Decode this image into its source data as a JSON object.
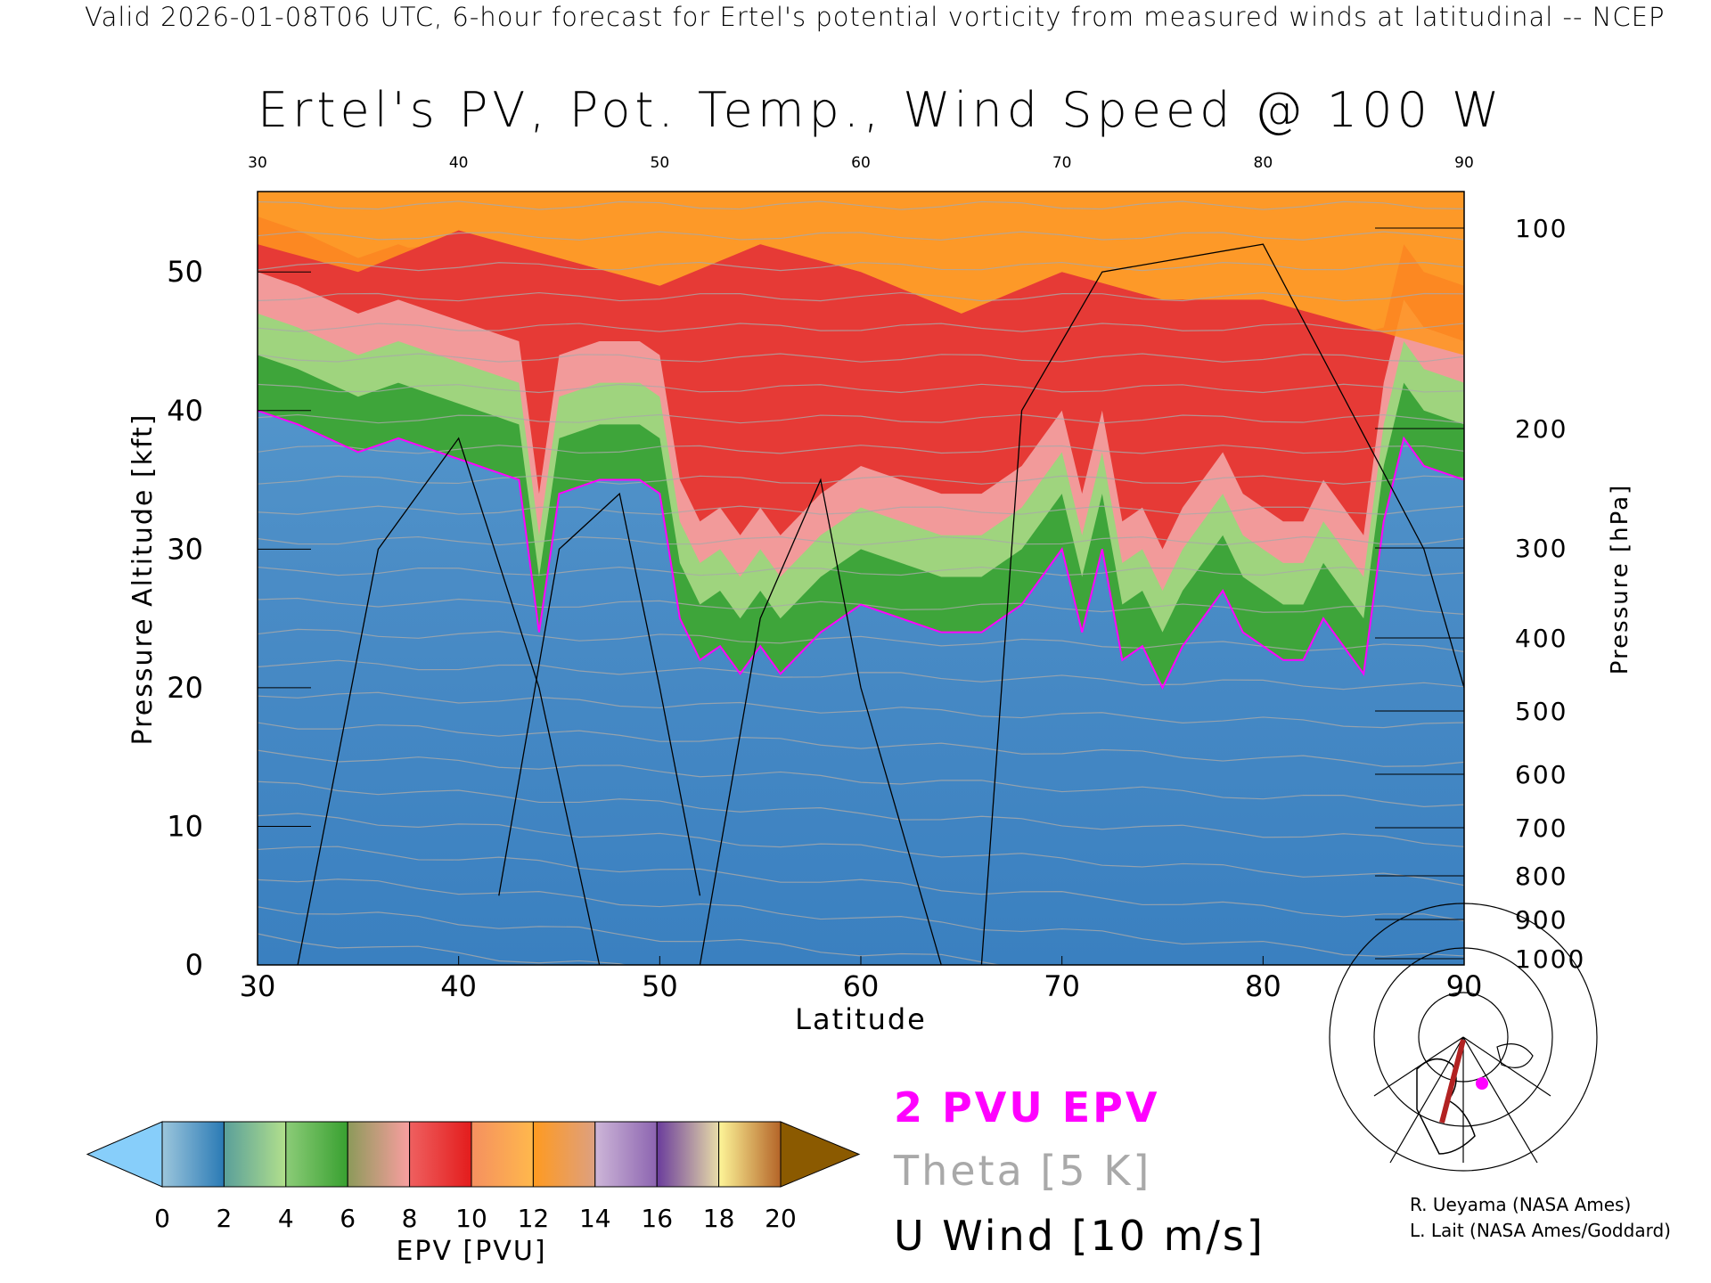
{
  "header": "Valid 2026-01-08T06 UTC, 6-hour forecast for Ertel's potential vorticity from measured winds at latitudinal -- NCEP",
  "title": "Ertel's PV, Pot. Temp., Wind Speed @ 100 W",
  "legend": {
    "pvu": "2 PVU EPV",
    "theta": "Theta [5 K]",
    "uwind": "U Wind [10 m/s]",
    "pvu_color": "#ff00ff",
    "theta_color": "#a9a9a9"
  },
  "credits": [
    "R. Ueyama (NASA Ames)",
    "L. Lait (NASA Ames/Goddard)"
  ],
  "map": {
    "highlight_color": "#b22222",
    "marker_color": "#ff00ff"
  },
  "colorbar": {
    "label": "EPV [PVU]",
    "ticks": [
      "0",
      "2",
      "4",
      "6",
      "8",
      "10",
      "12",
      "14",
      "16",
      "18",
      "20"
    ],
    "under_color": "#87cefa",
    "over_color": "#8b5a00",
    "segments": [
      [
        "#9cc6dc",
        "#2a7ab5"
      ],
      [
        "#5a9f9a",
        "#b2e08c"
      ],
      [
        "#8ccc78",
        "#38a030"
      ],
      [
        "#8c9a5a",
        "#fa9ea0"
      ],
      [
        "#ef6060",
        "#e31c1c"
      ],
      [
        "#f59060",
        "#ffb84c"
      ],
      [
        "#ff9a20",
        "#dda080"
      ],
      [
        "#cdb6d8",
        "#8c64b0"
      ],
      [
        "#6a3c9c",
        "#e8dca8"
      ],
      [
        "#fdf598",
        "#b46428"
      ]
    ]
  },
  "chart_data": {
    "type": "heatmap",
    "title": "Ertel's PV, Pot. Temp., Wind Speed @ 100 W",
    "xlabel": "Latitude",
    "ylabel": "Pressure Altitude [kft]",
    "y2label": "Pressure [hPa]",
    "xlim": [
      30,
      90
    ],
    "ylim": [
      0,
      55.8
    ],
    "x_ticks": [
      "30",
      "40",
      "50",
      "60",
      "70",
      "80",
      "90"
    ],
    "y_ticks": [
      "0",
      "10",
      "20",
      "30",
      "40",
      "50"
    ],
    "pressure_ticks": [
      "100",
      "200",
      "300",
      "400",
      "500",
      "600",
      "700",
      "800",
      "900",
      "1000"
    ],
    "tropopause_2pvu_kft": {
      "lat": [
        30,
        32,
        35,
        37,
        39,
        41,
        43,
        44,
        45,
        47,
        49,
        50,
        51,
        52,
        53,
        54,
        55,
        56,
        58,
        60,
        62,
        64,
        66,
        68,
        70,
        71,
        72,
        73,
        74,
        75,
        76,
        77,
        78,
        79,
        80,
        81,
        82,
        83,
        84,
        85,
        86,
        87,
        88,
        90
      ],
      "alt": [
        40,
        39,
        37,
        38,
        37,
        36,
        35,
        24,
        34,
        35,
        35,
        34,
        25,
        22,
        23,
        21,
        23,
        21,
        24,
        26,
        25,
        24,
        24,
        26,
        30,
        24,
        30,
        22,
        23,
        20,
        23,
        25,
        27,
        24,
        23,
        22,
        22,
        25,
        23,
        21,
        32,
        38,
        36,
        35
      ]
    },
    "stratosphere_top_band_kft": {
      "lat": [
        30,
        35,
        40,
        45,
        50,
        55,
        60,
        65,
        70,
        75,
        80,
        85,
        90
      ],
      "alt": [
        52,
        50,
        53,
        51,
        49,
        52,
        50,
        47,
        50,
        48,
        48,
        46,
        44
      ]
    }
  }
}
